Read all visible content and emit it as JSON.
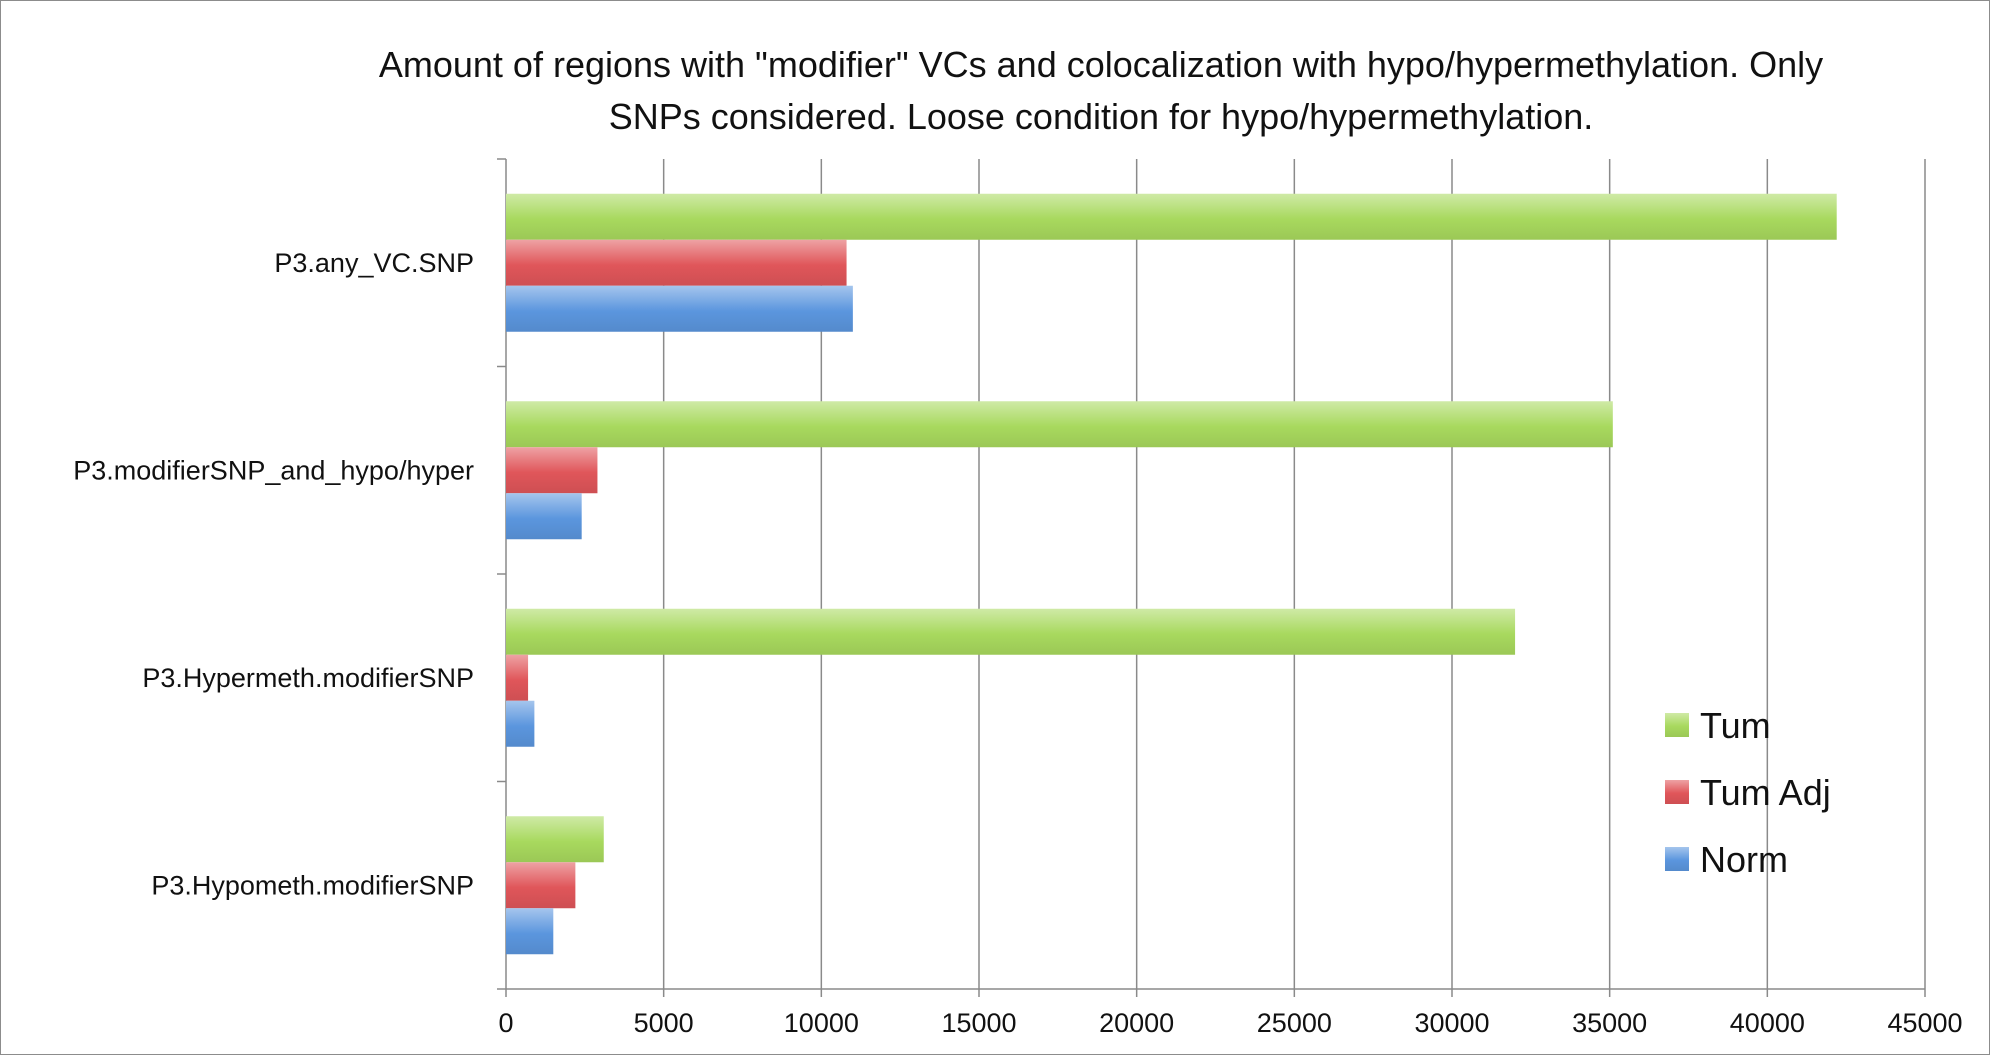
{
  "chart_data": {
    "type": "bar",
    "orientation": "horizontal",
    "title": "Amount of regions with \"modifier\" VCs and colocalization with hypo/hypermethylation. Only SNPs considered. Loose condition for hypo/hypermethylation.",
    "title_lines": [
      "Amount of regions with \"modifier\" VCs and colocalization with hypo/hypermethylation. Only",
      "SNPs considered. Loose condition for hypo/hypermethylation."
    ],
    "xlabel": "",
    "ylabel": "",
    "xlim": [
      0,
      45000
    ],
    "x_ticks": [
      0,
      5000,
      10000,
      15000,
      20000,
      25000,
      30000,
      35000,
      40000,
      45000
    ],
    "grid": "vertical",
    "legend_position": "right",
    "categories": [
      "P3.any_VC.SNP",
      "P3.modifierSNP_and_hypo/hyper",
      "P3.Hypermeth.modifierSNP",
      "P3.Hypometh.modifierSNP"
    ],
    "series": [
      {
        "name": "Tum",
        "color": "#a8d95e",
        "values": [
          42200,
          35100,
          32000,
          3100
        ]
      },
      {
        "name": "Tum Adj",
        "color": "#e0565a",
        "values": [
          10800,
          2900,
          700,
          2200
        ]
      },
      {
        "name": "Norm",
        "color": "#5b96de",
        "values": [
          11000,
          2400,
          900,
          1500
        ]
      }
    ]
  }
}
